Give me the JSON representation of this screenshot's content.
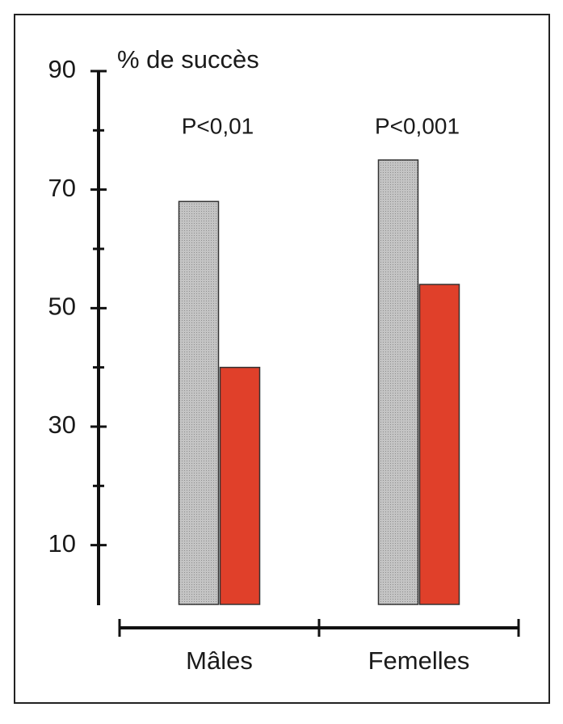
{
  "chart_data": {
    "type": "bar",
    "y_label": "% de succès",
    "categories": [
      "Mâles",
      "Femelles"
    ],
    "annotations": [
      "P<0,01",
      "P<0,001"
    ],
    "series": [
      {
        "color": "#b9b9b9",
        "values": [
          68,
          75
        ]
      },
      {
        "color": "#e0402a",
        "values": [
          40,
          54
        ]
      }
    ],
    "ylim": [
      0,
      90
    ],
    "yticks": [
      10,
      30,
      50,
      70,
      90
    ],
    "minor_yticks": [
      20,
      40,
      60,
      80
    ]
  }
}
